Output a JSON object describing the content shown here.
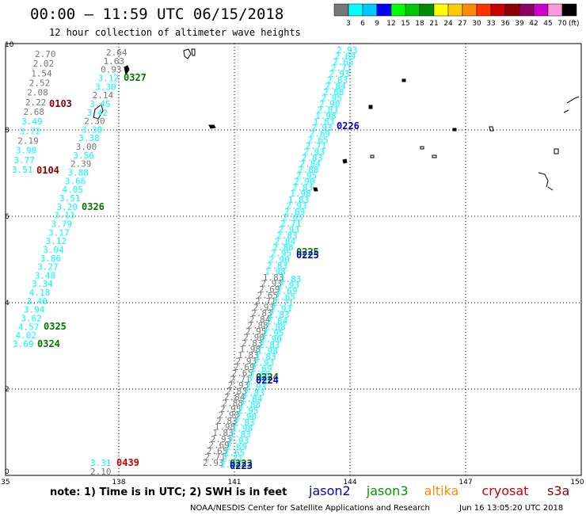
{
  "header": {
    "title": "00:00 – 11:59 UTC 06/15/2018",
    "subtitle": "12 hour collection of altimeter wave heights"
  },
  "scale": {
    "colors": [
      "#777777",
      "#00ffff",
      "#00c8ff",
      "#0000ff",
      "#00ff00",
      "#00c800",
      "#008c00",
      "#ffff00",
      "#ffcc00",
      "#ff8c00",
      "#ff3300",
      "#c80000",
      "#8c0000",
      "#8c0064",
      "#cc00cc",
      "#ff99dd",
      "#000000"
    ],
    "labels": [
      "3",
      "6",
      "9",
      "12",
      "15",
      "18",
      "21",
      "24",
      "27",
      "30",
      "33",
      "36",
      "39",
      "42",
      "45",
      "70"
    ],
    "unit": "(ft)"
  },
  "axes": {
    "x_ticks": [
      "135",
      "138",
      "141",
      "144",
      "147",
      "150"
    ],
    "y_ticks": [
      "10",
      "8",
      "6",
      "4",
      "2",
      "0"
    ]
  },
  "tracks": [
    {
      "name": "track-west-cryosat-jason3",
      "labels": [
        {
          "v": "2.70",
          "c": "#777777"
        },
        {
          "v": "2.02",
          "c": "#777777"
        },
        {
          "v": "1.54",
          "c": "#777777"
        },
        {
          "v": "2.52",
          "c": "#777777"
        },
        {
          "v": "2.08",
          "c": "#777777"
        },
        {
          "v": "2.22",
          "c": "#777777"
        },
        {
          "v": "2.68",
          "c": "#777777"
        },
        {
          "v": "3.49",
          "c": "#00ffff"
        },
        {
          "v": "3.72",
          "c": "#00ffff"
        },
        {
          "v": "2.19",
          "c": "#777777"
        },
        {
          "v": "3.98",
          "c": "#00ffff"
        },
        {
          "v": "3.77",
          "c": "#00ffff"
        },
        {
          "v": "3.51",
          "c": "#00ffff"
        }
      ]
    },
    {
      "name": "track-west-main",
      "labels": [
        {
          "v": "2.64",
          "c": "#777777"
        },
        {
          "v": "1.63",
          "c": "#777777"
        },
        {
          "v": "0.93",
          "c": "#777777"
        },
        {
          "v": "3.12",
          "c": "#00ffff"
        },
        {
          "v": "3.30",
          "c": "#00ffff"
        },
        {
          "v": "2.14",
          "c": "#777777"
        },
        {
          "v": "3.45",
          "c": "#00ffff"
        },
        {
          "v": "3.42",
          "c": "#00ffff"
        },
        {
          "v": "2.30",
          "c": "#777777"
        },
        {
          "v": "3.30",
          "c": "#00ffff"
        },
        {
          "v": "3.38",
          "c": "#00ffff"
        },
        {
          "v": "3.00",
          "c": "#777777"
        },
        {
          "v": "3.56",
          "c": "#00ffff"
        },
        {
          "v": "2.39",
          "c": "#777777"
        },
        {
          "v": "3.88",
          "c": "#00ffff"
        },
        {
          "v": "3.66",
          "c": "#00ffff"
        },
        {
          "v": "4.05",
          "c": "#00ffff"
        },
        {
          "v": "3.51",
          "c": "#00ffff"
        },
        {
          "v": "3.20",
          "c": "#00ffff"
        },
        {
          "v": "3.13",
          "c": "#00ffff"
        },
        {
          "v": "3.79",
          "c": "#00ffff"
        },
        {
          "v": "3.17",
          "c": "#00ffff"
        },
        {
          "v": "3.12",
          "c": "#00ffff"
        },
        {
          "v": "3.04",
          "c": "#00ffff"
        },
        {
          "v": "3.86",
          "c": "#00ffff"
        },
        {
          "v": "3.27",
          "c": "#00ffff"
        },
        {
          "v": "3.48",
          "c": "#00ffff"
        },
        {
          "v": "3.34",
          "c": "#00ffff"
        },
        {
          "v": "4.18",
          "c": "#00ffff"
        },
        {
          "v": "3.40",
          "c": "#00ffff"
        },
        {
          "v": "3.94",
          "c": "#00ffff"
        },
        {
          "v": "3.62",
          "c": "#00ffff"
        },
        {
          "v": "4.57",
          "c": "#00ffff"
        },
        {
          "v": "4.02",
          "c": "#00ffff"
        },
        {
          "v": "3.69",
          "c": "#00ffff"
        }
      ]
    },
    {
      "name": "track-south",
      "labels": [
        {
          "v": "3.31",
          "c": "#00ffff"
        },
        {
          "v": "2.10",
          "c": "#777777"
        }
      ]
    }
  ],
  "time_labels": [
    {
      "t": "0327",
      "c": "#007700"
    },
    {
      "t": "0103",
      "c": "#8c0000"
    },
    {
      "t": "0104",
      "c": "#8c0000"
    },
    {
      "t": "0326",
      "c": "#007700"
    },
    {
      "t": "0325",
      "c": "#007700"
    },
    {
      "t": "0324",
      "c": "#007700"
    },
    {
      "t": "0439",
      "c": "#cc0000"
    },
    {
      "t": "0226",
      "c": "#0000cc"
    },
    {
      "t": "0225",
      "c": "#007700"
    },
    {
      "t": "0225",
      "c": "#0000cc"
    },
    {
      "t": "0224",
      "c": "#007700"
    },
    {
      "t": "0224",
      "c": "#0000cc"
    },
    {
      "t": "0223",
      "c": "#007700"
    },
    {
      "t": "0223",
      "c": "#0000cc"
    }
  ],
  "east_track_sample": {
    "top": "2.93",
    "mid": [
      "2.69",
      "2.65",
      "2.71",
      "2.93",
      "2.83",
      "2.84",
      "2.88",
      "2.95",
      "2.90",
      "2.83",
      "1.98"
    ],
    "bottom": "1.83"
  },
  "footer": {
    "note": "note: 1) Time is in UTC; 2) SWH is in feet",
    "legend": [
      {
        "t": "jason2",
        "c": "#0000cc"
      },
      {
        "t": "jason3",
        "c": "#009900"
      },
      {
        "t": "altika",
        "c": "#ff8c00"
      },
      {
        "t": "cryosat",
        "c": "#cc0000"
      },
      {
        "t": "s3a",
        "c": "#8c0000"
      }
    ],
    "credit": "NOAA/NESDIS Center for Satellite Applications and Research",
    "timestamp": "Jun 16 13:05:20 UTC 2018"
  }
}
